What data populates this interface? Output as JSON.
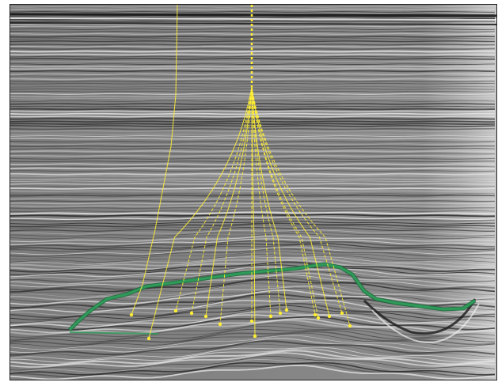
{
  "view": {
    "kind": "seismic-section",
    "colormap": "grayscale",
    "background": "#ffffff",
    "frame_color": "#222222"
  },
  "horizon": {
    "color": "#2f9a5a",
    "edge_color": "#1d6b3b"
  },
  "wells": {
    "color": "#ffee33",
    "marker": "yellow-dot",
    "count": 16
  }
}
